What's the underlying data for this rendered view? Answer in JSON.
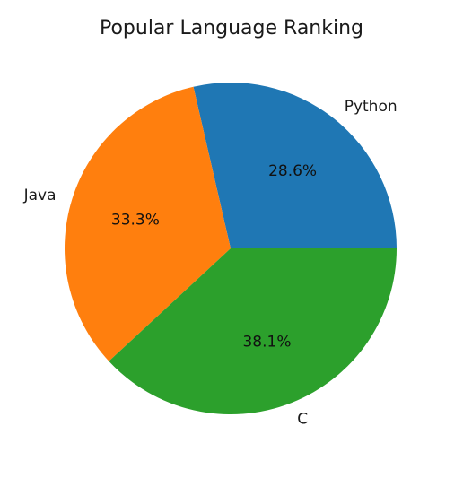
{
  "chart_data": {
    "type": "pie",
    "title": "Popular Language Ranking",
    "start_angle_deg": 0,
    "direction": "counterclockwise",
    "slices": [
      {
        "label": "Python",
        "value": 28.6,
        "pct_label": "28.6%",
        "color": "#1f77b4"
      },
      {
        "label": "Java",
        "value": 33.3,
        "pct_label": "33.3%",
        "color": "#ff7f0e"
      },
      {
        "label": "C",
        "value": 38.1,
        "pct_label": "38.1%",
        "color": "#2ca02c"
      }
    ]
  }
}
